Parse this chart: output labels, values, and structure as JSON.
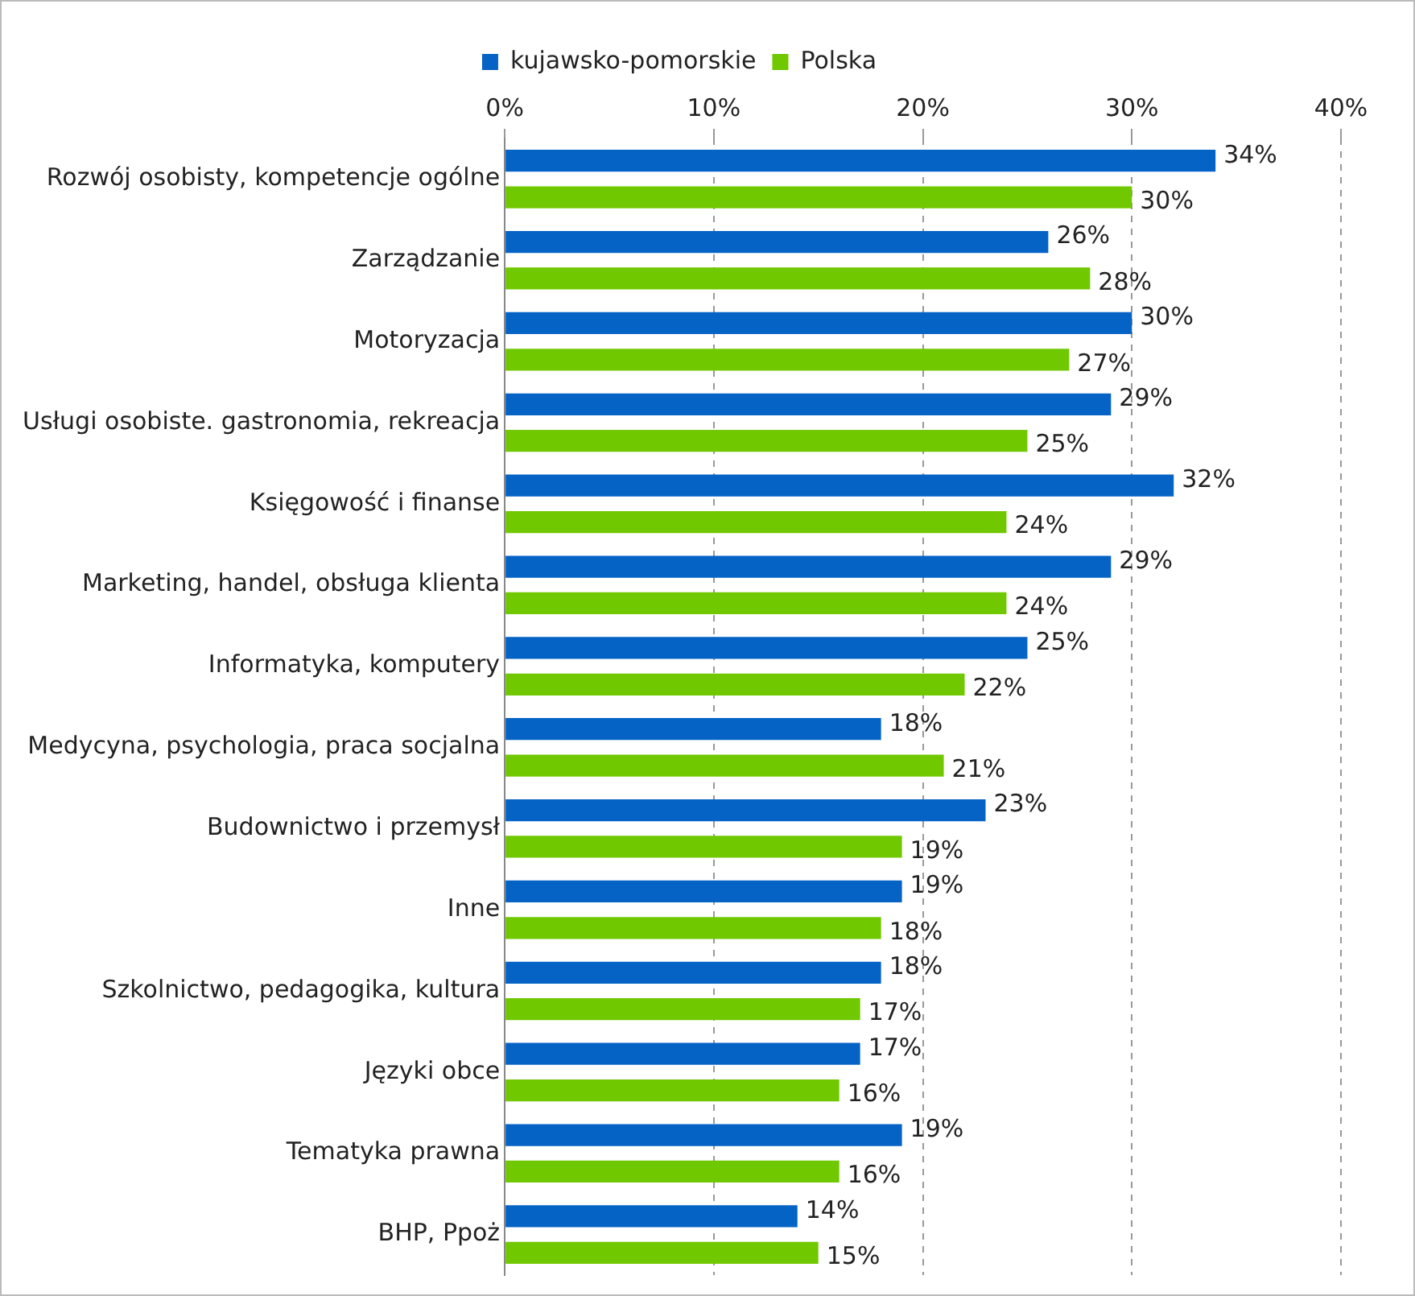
{
  "chart_data": {
    "type": "bar",
    "orientation": "horizontal",
    "categories": [
      "Rozwój osobisty, kompetencje ogólne",
      "Zarządzanie",
      "Motoryzacja",
      "Usługi osobiste. gastronomia, rekreacja",
      "Księgowość i finanse",
      "Marketing, handel, obsługa klienta",
      "Informatyka, komputery",
      "Medycyna, psychologia, praca socjalna",
      "Budownictwo i przemysł",
      "Inne",
      "Szkolnictwo, pedagogika, kultura",
      "Języki obce",
      "Tematyka prawna",
      "BHP, Ppoż"
    ],
    "series": [
      {
        "name": "kujawsko-pomorskie",
        "color": "#0563c6",
        "values": [
          34,
          26,
          30,
          29,
          32,
          29,
          25,
          18,
          23,
          19,
          18,
          17,
          19,
          14
        ],
        "value_labels": [
          "34%",
          "26%",
          "30%",
          "29%",
          "32%",
          "29%",
          "25%",
          "18%",
          "23%",
          "19%",
          "18%",
          "17%",
          "19%",
          "14%"
        ]
      },
      {
        "name": "Polska",
        "color": "#70c800",
        "values": [
          30,
          28,
          27,
          25,
          24,
          24,
          22,
          21,
          19,
          18,
          17,
          16,
          16,
          15
        ],
        "value_labels": [
          "30%",
          "28%",
          "27%",
          "25%",
          "24%",
          "24%",
          "22%",
          "21%",
          "19%",
          "18%",
          "17%",
          "16%",
          "16%",
          "15%"
        ]
      }
    ],
    "xlim": [
      0,
      40
    ],
    "xticks": [
      {
        "value": 0,
        "label": "0%"
      },
      {
        "value": 10,
        "label": "10%"
      },
      {
        "value": 20,
        "label": "20%"
      },
      {
        "value": 30,
        "label": "30%"
      },
      {
        "value": 40,
        "label": "40%"
      }
    ],
    "grid": "x",
    "legend": "top"
  }
}
